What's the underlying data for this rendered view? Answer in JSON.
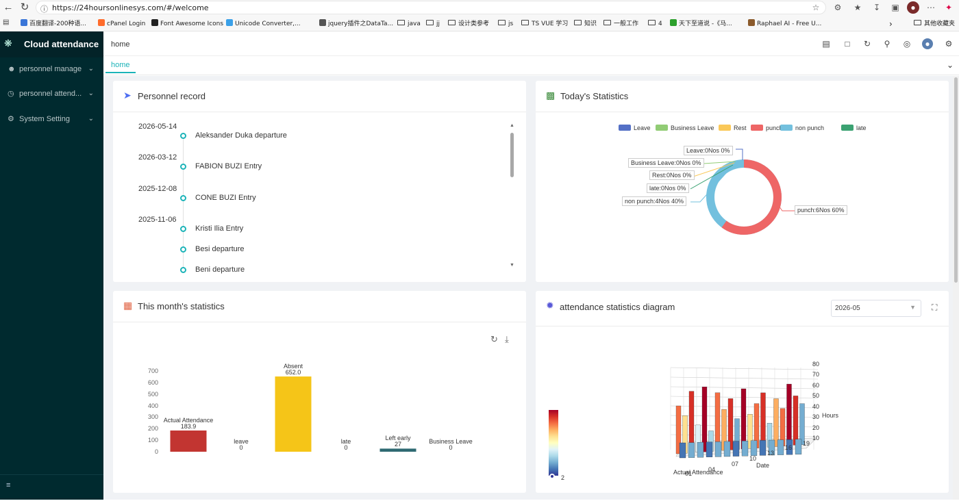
{
  "browser": {
    "url": "https://24hoursonlinesys.com/#/welcome",
    "bookmarks": [
      {
        "label": "百度翻译-200种语...",
        "color": "#3a76d8",
        "folder": false
      },
      {
        "label": "cPanel Login",
        "color": "#ff6c2c",
        "folder": false
      },
      {
        "label": "Font Awesome Icons",
        "color": "#222222",
        "folder": false
      },
      {
        "label": "Unicode Converter,...",
        "color": "#3aa0e8",
        "folder": false
      },
      {
        "label": "jquery插件之DataTa...",
        "color": "#555555",
        "folder": false
      },
      {
        "label": "java",
        "color": "",
        "folder": true
      },
      {
        "label": "jj",
        "color": "",
        "folder": true
      },
      {
        "label": "设计类参考",
        "color": "",
        "folder": true
      },
      {
        "label": "js",
        "color": "",
        "folder": true
      },
      {
        "label": "TS VUE 学习",
        "color": "",
        "folder": true
      },
      {
        "label": "知识",
        "color": "",
        "folder": true
      },
      {
        "label": "一般工作",
        "color": "",
        "folder": true
      },
      {
        "label": "4",
        "color": "",
        "folder": true
      },
      {
        "label": "天下至道说 -《马...",
        "color": "#2ca02c",
        "folder": false
      },
      {
        "label": "Raphael AI - Free U...",
        "color": "#8b5a2b",
        "folder": false
      }
    ],
    "other_bookmarks": "其他收藏夹"
  },
  "sidebar": {
    "brand": "Cloud attendance",
    "items": [
      {
        "label": "personnel manage",
        "icon": "users-icon"
      },
      {
        "label": "personnel attend...",
        "icon": "clock-icon"
      },
      {
        "label": "System Setting",
        "icon": "gear-icon"
      }
    ]
  },
  "header": {
    "breadcrumb": "home",
    "tab": "home"
  },
  "personnel_record": {
    "title": "Personnel record",
    "entries": [
      {
        "date": "2026-05-14",
        "text": "Aleksander Duka departure"
      },
      {
        "date": "2026-03-12",
        "text": "FABION BUZI Entry"
      },
      {
        "date": "2025-12-08",
        "text": "CONE BUZI Entry"
      },
      {
        "date": "2025-11-06",
        "text": "Kristi Ilia Entry"
      },
      {
        "date": "",
        "text": "Besi departure"
      },
      {
        "date": "",
        "text": "Beni departure"
      }
    ]
  },
  "today_stats": {
    "title": "Today's Statistics",
    "legend": [
      {
        "name": "Leave",
        "color": "#5470c6"
      },
      {
        "name": "Business Leave",
        "color": "#91cc75"
      },
      {
        "name": "Rest",
        "color": "#fac858"
      },
      {
        "name": "punch",
        "color": "#ee6666"
      },
      {
        "name": "non punch",
        "color": "#73c0de"
      },
      {
        "name": "late",
        "color": "#3ba272"
      }
    ],
    "labels": [
      "Leave:0Nos 0%",
      "Business Leave:0Nos 0%",
      "Rest:0Nos 0%",
      "late:0Nos 0%",
      "non punch:4Nos 40%",
      "punch:6Nos 60%"
    ]
  },
  "month_stats": {
    "title": "This month's statistics",
    "toolbox": [
      "refresh-icon",
      "download-icon"
    ],
    "chart_data": {
      "type": "bar",
      "categories": [
        "Actual Attendance",
        "leave",
        "Absent",
        "late",
        "Left early",
        "Business Leave"
      ],
      "values": [
        183.9,
        0,
        652.0,
        0,
        27,
        0
      ],
      "value_labels": [
        "183.9",
        "0",
        "652.0",
        "0",
        "27",
        "0"
      ],
      "colors": [
        "#c23531",
        "#2f4554",
        "#f5c518",
        "#d48265",
        "#2f6a73",
        "#749f83"
      ],
      "yticks": [
        "0",
        "100",
        "200",
        "300",
        "400",
        "500",
        "600",
        "700"
      ],
      "ylim": [
        0,
        700
      ]
    }
  },
  "attendance_diagram": {
    "title": "attendance statistics diagram",
    "month": "2026-05",
    "zaxis_ticks": [
      "10",
      "20",
      "30",
      "40",
      "50",
      "60",
      "70",
      "80"
    ],
    "zaxis_label": "Hours",
    "xaxis_ticks": [
      "07",
      "10",
      "13",
      "16",
      "19"
    ],
    "xaxis_label": "Date",
    "yaxis_ticks": [
      "01",
      "04"
    ],
    "yaxis_label": "Actual Attendance",
    "visualmap_min": "2"
  }
}
